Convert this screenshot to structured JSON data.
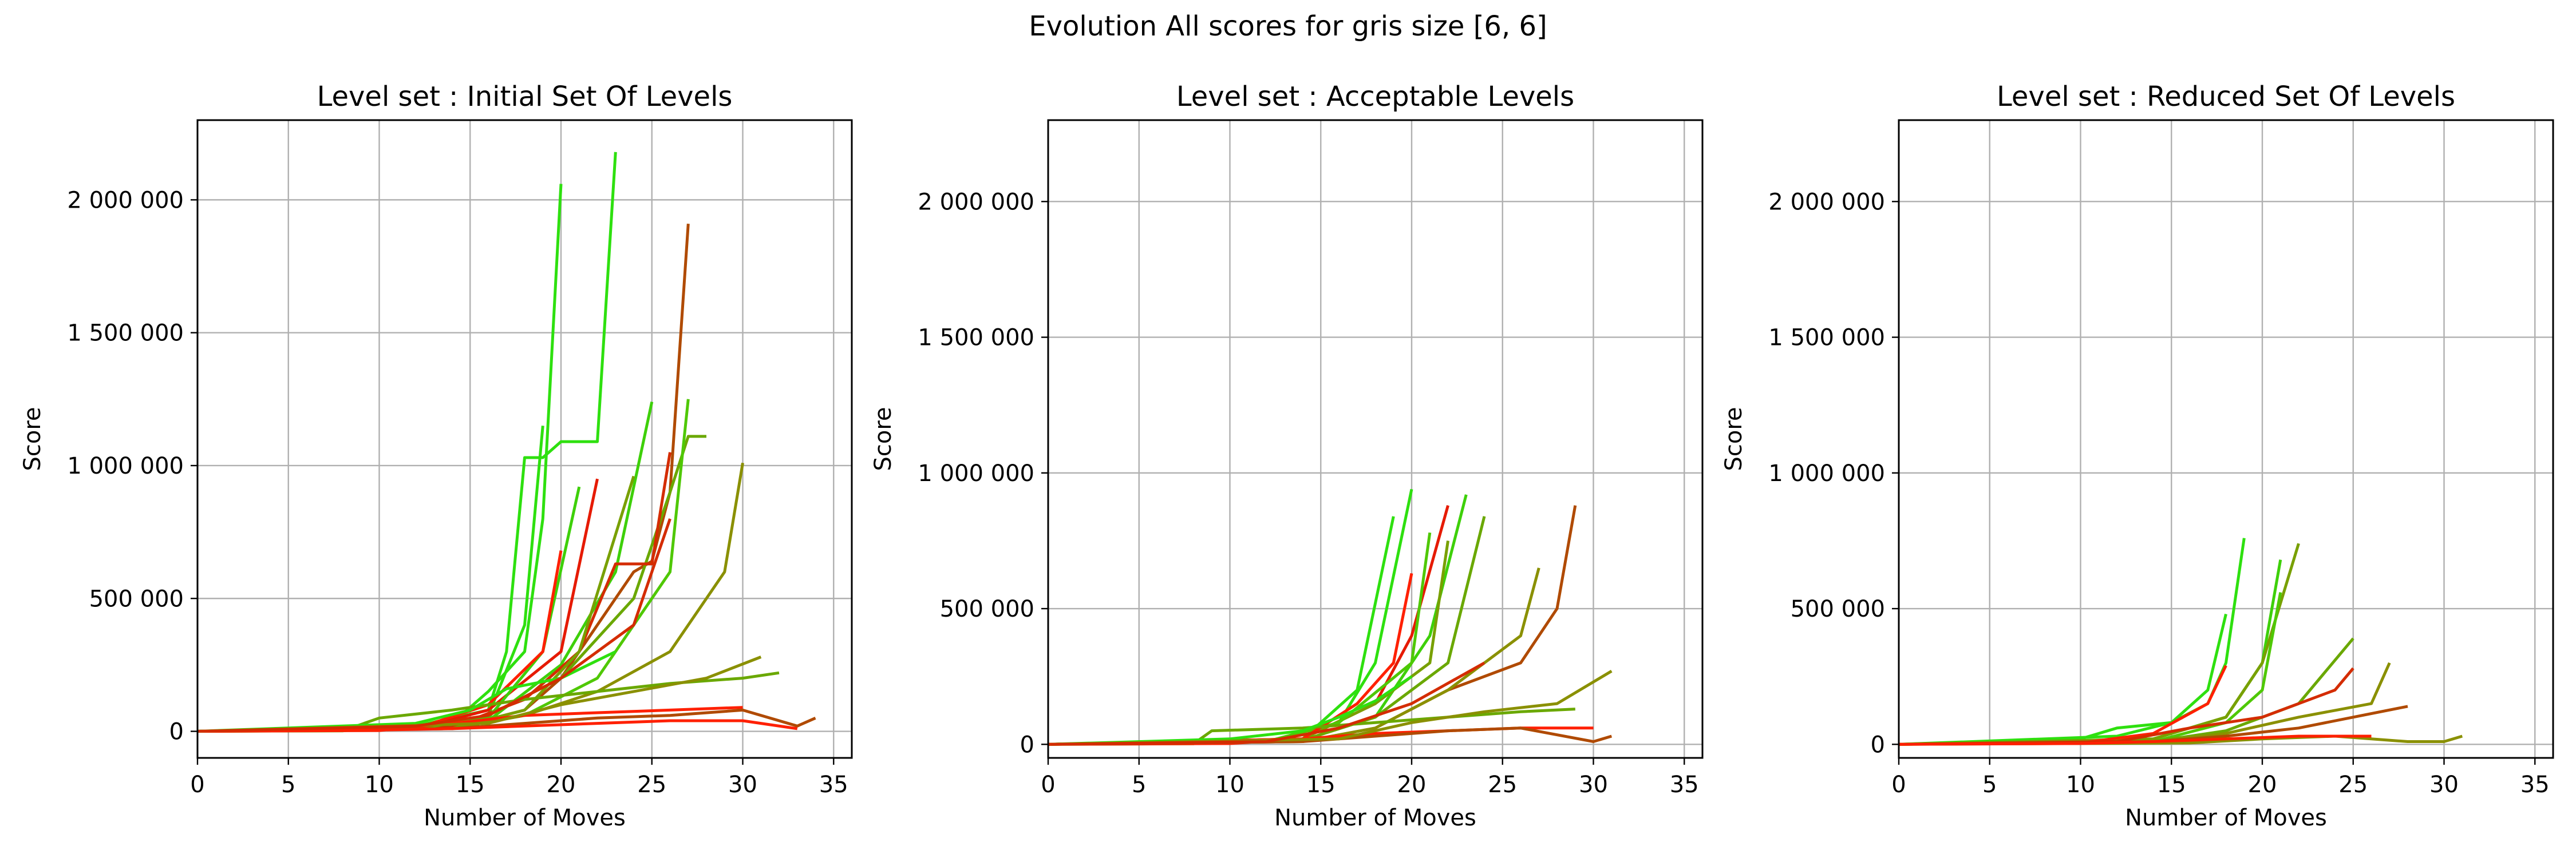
{
  "figure": {
    "title": "Evolution All scores for gris size [6, 6]"
  },
  "chart_data": [
    {
      "type": "line",
      "title": "Level set : Initial Set Of Levels",
      "xlabel": "Number of Moves",
      "ylabel": "Score",
      "xlim": [
        0,
        36
      ],
      "ylim": [
        -100000,
        2300000
      ],
      "xticks": [
        0,
        5,
        10,
        15,
        20,
        25,
        30,
        35
      ],
      "yticks": [
        0,
        500000,
        1000000,
        1500000,
        2000000
      ],
      "ytick_labels": [
        "0",
        "500 000",
        "1 000 000",
        "1 500 000",
        "2 000 000"
      ],
      "grid": true,
      "series": [
        {
          "color": "#2ee00f",
          "x": [
            0,
            8,
            12,
            16,
            17,
            18,
            19,
            20,
            21,
            22,
            23
          ],
          "y": [
            0,
            2000,
            20000,
            80000,
            300000,
            1030000,
            1030000,
            1090000,
            1090000,
            1090000,
            2180000
          ]
        },
        {
          "color": "#2ee00f",
          "x": [
            0,
            10,
            14,
            16,
            18,
            19,
            20
          ],
          "y": [
            0,
            5000,
            30000,
            150000,
            300000,
            800000,
            2060000
          ]
        },
        {
          "color": "#2ee00f",
          "x": [
            0,
            12,
            16,
            18,
            19
          ],
          "y": [
            0,
            8000,
            60000,
            400000,
            1150000
          ]
        },
        {
          "color": "#b04a00",
          "x": [
            0,
            14,
            18,
            20,
            22,
            24,
            25,
            26,
            27
          ],
          "y": [
            0,
            10000,
            80000,
            200000,
            400000,
            600000,
            640000,
            900000,
            1910000
          ]
        },
        {
          "color": "#6aa800",
          "x": [
            0,
            12,
            16,
            20,
            24,
            26,
            27,
            28
          ],
          "y": [
            0,
            10000,
            60000,
            200000,
            500000,
            900000,
            1110000,
            1110000
          ]
        },
        {
          "color": "#3ed00a",
          "x": [
            0,
            12,
            16,
            20,
            23,
            25
          ],
          "y": [
            0,
            8000,
            40000,
            250000,
            600000,
            1240000
          ]
        },
        {
          "color": "#4fc805",
          "x": [
            0,
            14,
            18,
            22,
            26,
            27
          ],
          "y": [
            0,
            10000,
            60000,
            200000,
            600000,
            1250000
          ]
        },
        {
          "color": "#d42c00",
          "x": [
            0,
            14,
            18,
            21,
            23,
            25,
            26
          ],
          "y": [
            0,
            15000,
            120000,
            300000,
            630000,
            630000,
            1050000
          ]
        },
        {
          "color": "#8a9000",
          "x": [
            0,
            14,
            18,
            22,
            26,
            29,
            30
          ],
          "y": [
            0,
            10000,
            60000,
            150000,
            300000,
            600000,
            1010000
          ]
        },
        {
          "color": "#e61a00",
          "x": [
            0,
            12,
            16,
            20,
            22
          ],
          "y": [
            0,
            10000,
            80000,
            300000,
            950000
          ]
        },
        {
          "color": "#3ed00a",
          "x": [
            0,
            12,
            16,
            19,
            21
          ],
          "y": [
            0,
            10000,
            50000,
            300000,
            920000
          ]
        },
        {
          "color": "#78a000",
          "x": [
            0,
            14,
            18,
            21,
            24
          ],
          "y": [
            0,
            10000,
            80000,
            300000,
            960000
          ]
        },
        {
          "color": "#ff2000",
          "x": [
            0,
            12,
            16,
            19,
            20
          ],
          "y": [
            0,
            10000,
            100000,
            300000,
            680000
          ]
        },
        {
          "color": "#6aa800",
          "x": [
            0,
            8,
            10,
            14,
            18,
            22,
            26,
            30,
            32
          ],
          "y": [
            0,
            2000,
            50000,
            80000,
            120000,
            150000,
            180000,
            200000,
            220000
          ]
        },
        {
          "color": "#ff2000",
          "x": [
            0,
            10,
            14,
            18,
            22,
            26,
            30
          ],
          "y": [
            0,
            3000,
            30000,
            60000,
            70000,
            80000,
            90000
          ]
        },
        {
          "color": "#b04a00",
          "x": [
            0,
            14,
            18,
            22,
            26,
            30,
            33,
            34
          ],
          "y": [
            0,
            10000,
            30000,
            50000,
            60000,
            80000,
            20000,
            50000
          ]
        },
        {
          "color": "#ff2000",
          "x": [
            0,
            10,
            14,
            18,
            22,
            26,
            30,
            33
          ],
          "y": [
            0,
            5000,
            10000,
            20000,
            30000,
            40000,
            40000,
            10000
          ]
        },
        {
          "color": "#2ee00f",
          "x": [
            0,
            12,
            15,
            17,
            20,
            23
          ],
          "y": [
            0,
            30000,
            80000,
            160000,
            200000,
            300000
          ]
        },
        {
          "color": "#8a9000",
          "x": [
            0,
            16,
            20,
            24,
            28,
            31
          ],
          "y": [
            0,
            30000,
            100000,
            150000,
            200000,
            280000
          ]
        },
        {
          "color": "#d42c00",
          "x": [
            0,
            12,
            16,
            20,
            24,
            26
          ],
          "y": [
            0,
            20000,
            60000,
            200000,
            400000,
            800000
          ]
        }
      ]
    },
    {
      "type": "line",
      "title": "Level set : Acceptable Levels",
      "xlabel": "Number of Moves",
      "ylabel": "Score",
      "xlim": [
        0,
        36
      ],
      "ylim": [
        -50000,
        2300000
      ],
      "xticks": [
        0,
        5,
        10,
        15,
        20,
        25,
        30,
        35
      ],
      "yticks": [
        0,
        500000,
        1000000,
        1500000,
        2000000
      ],
      "ytick_labels": [
        "0",
        "500 000",
        "1 000 000",
        "1 500 000",
        "2 000 000"
      ],
      "grid": true,
      "series": [
        {
          "color": "#2ee00f",
          "x": [
            0,
            12,
            16,
            18,
            20
          ],
          "y": [
            0,
            10000,
            80000,
            300000,
            940000
          ]
        },
        {
          "color": "#2ee00f",
          "x": [
            0,
            14,
            17,
            19
          ],
          "y": [
            0,
            20000,
            200000,
            840000
          ]
        },
        {
          "color": "#3ed00a",
          "x": [
            0,
            14,
            18,
            21,
            23
          ],
          "y": [
            0,
            15000,
            100000,
            400000,
            920000
          ]
        },
        {
          "color": "#e61a00",
          "x": [
            0,
            14,
            18,
            20,
            22
          ],
          "y": [
            0,
            20000,
            150000,
            400000,
            880000
          ]
        },
        {
          "color": "#b04a00",
          "x": [
            0,
            14,
            18,
            22,
            26,
            28,
            29
          ],
          "y": [
            0,
            10000,
            60000,
            200000,
            300000,
            500000,
            880000
          ]
        },
        {
          "color": "#6aa800",
          "x": [
            0,
            14,
            18,
            22,
            24
          ],
          "y": [
            0,
            15000,
            100000,
            300000,
            840000
          ]
        },
        {
          "color": "#78a000",
          "x": [
            0,
            14,
            18,
            21,
            22
          ],
          "y": [
            0,
            20000,
            150000,
            300000,
            750000
          ]
        },
        {
          "color": "#4fc805",
          "x": [
            0,
            12,
            16,
            20,
            21
          ],
          "y": [
            0,
            10000,
            80000,
            300000,
            780000
          ]
        },
        {
          "color": "#8a9000",
          "x": [
            0,
            14,
            18,
            22,
            26,
            27
          ],
          "y": [
            0,
            10000,
            60000,
            200000,
            400000,
            650000
          ]
        },
        {
          "color": "#ff2000",
          "x": [
            0,
            14,
            17,
            19,
            20
          ],
          "y": [
            0,
            20000,
            150000,
            300000,
            630000
          ]
        },
        {
          "color": "#6aa800",
          "x": [
            0,
            8,
            9,
            14,
            18,
            22,
            26,
            29
          ],
          "y": [
            0,
            2000,
            50000,
            60000,
            80000,
            100000,
            120000,
            130000
          ]
        },
        {
          "color": "#2ee00f",
          "x": [
            0,
            10,
            14,
            16,
            18,
            20
          ],
          "y": [
            0,
            20000,
            50000,
            100000,
            160000,
            250000
          ]
        },
        {
          "color": "#ff2000",
          "x": [
            0,
            10,
            14,
            18,
            22,
            26,
            30
          ],
          "y": [
            0,
            3000,
            20000,
            40000,
            50000,
            60000,
            60000
          ]
        },
        {
          "color": "#b04a00",
          "x": [
            0,
            14,
            18,
            22,
            26,
            30,
            31
          ],
          "y": [
            0,
            10000,
            30000,
            50000,
            60000,
            10000,
            30000
          ]
        },
        {
          "color": "#8a9000",
          "x": [
            0,
            16,
            20,
            24,
            28,
            31
          ],
          "y": [
            0,
            20000,
            80000,
            120000,
            150000,
            270000
          ]
        },
        {
          "color": "#d42c00",
          "x": [
            0,
            12,
            16,
            20,
            24
          ],
          "y": [
            0,
            10000,
            60000,
            150000,
            300000
          ]
        }
      ]
    },
    {
      "type": "line",
      "title": "Level set : Reduced Set Of Levels",
      "xlabel": "Number of Moves",
      "ylabel": "Score",
      "xlim": [
        0,
        36
      ],
      "ylim": [
        -50000,
        2300000
      ],
      "xticks": [
        0,
        5,
        10,
        15,
        20,
        25,
        30,
        35
      ],
      "yticks": [
        0,
        500000,
        1000000,
        1500000,
        2000000
      ],
      "ytick_labels": [
        "0",
        "500 000",
        "1 000 000",
        "1 500 000",
        "2 000 000"
      ],
      "grid": true,
      "series": [
        {
          "color": "#2ee00f",
          "x": [
            0,
            10,
            12,
            15,
            17,
            18,
            19
          ],
          "y": [
            0,
            20000,
            60000,
            80000,
            150000,
            300000,
            760000
          ]
        },
        {
          "color": "#2ee00f",
          "x": [
            0,
            12,
            15,
            17,
            18
          ],
          "y": [
            0,
            30000,
            80000,
            200000,
            480000
          ]
        },
        {
          "color": "#3ed00a",
          "x": [
            0,
            14,
            18,
            20,
            21
          ],
          "y": [
            0,
            20000,
            100000,
            300000,
            680000
          ]
        },
        {
          "color": "#78a000",
          "x": [
            0,
            14,
            18,
            20,
            22
          ],
          "y": [
            0,
            20000,
            100000,
            300000,
            740000
          ]
        },
        {
          "color": "#4fc805",
          "x": [
            0,
            14,
            18,
            20,
            21
          ],
          "y": [
            0,
            10000,
            80000,
            200000,
            560000
          ]
        },
        {
          "color": "#ff2000",
          "x": [
            0,
            10,
            14,
            17,
            18
          ],
          "y": [
            0,
            5000,
            40000,
            150000,
            290000
          ]
        },
        {
          "color": "#6aa800",
          "x": [
            0,
            14,
            18,
            22,
            25
          ],
          "y": [
            0,
            10000,
            50000,
            150000,
            390000
          ]
        },
        {
          "color": "#8a9000",
          "x": [
            0,
            14,
            18,
            22,
            26,
            27
          ],
          "y": [
            0,
            10000,
            40000,
            100000,
            150000,
            300000
          ]
        },
        {
          "color": "#b04a00",
          "x": [
            0,
            14,
            18,
            22,
            25,
            28
          ],
          "y": [
            0,
            10000,
            30000,
            60000,
            100000,
            140000
          ]
        },
        {
          "color": "#d42c00",
          "x": [
            0,
            12,
            16,
            20,
            24,
            25
          ],
          "y": [
            0,
            10000,
            60000,
            100000,
            200000,
            280000
          ]
        },
        {
          "color": "#8a9000",
          "x": [
            0,
            16,
            20,
            24,
            28,
            30,
            31
          ],
          "y": [
            0,
            5000,
            20000,
            30000,
            10000,
            10000,
            30000
          ]
        },
        {
          "color": "#ff2000",
          "x": [
            0,
            10,
            14,
            18,
            22,
            26
          ],
          "y": [
            0,
            3000,
            10000,
            20000,
            30000,
            30000
          ]
        }
      ]
    }
  ]
}
